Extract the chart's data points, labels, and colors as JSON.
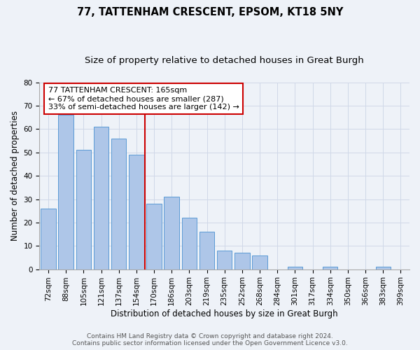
{
  "title1": "77, TATTENHAM CRESCENT, EPSOM, KT18 5NY",
  "title2": "Size of property relative to detached houses in Great Burgh",
  "xlabel": "Distribution of detached houses by size in Great Burgh",
  "ylabel": "Number of detached properties",
  "categories": [
    "72sqm",
    "88sqm",
    "105sqm",
    "121sqm",
    "137sqm",
    "154sqm",
    "170sqm",
    "186sqm",
    "203sqm",
    "219sqm",
    "235sqm",
    "252sqm",
    "268sqm",
    "284sqm",
    "301sqm",
    "317sqm",
    "334sqm",
    "350sqm",
    "366sqm",
    "383sqm",
    "399sqm"
  ],
  "values": [
    26,
    66,
    51,
    61,
    56,
    49,
    28,
    31,
    22,
    16,
    8,
    7,
    6,
    0,
    1,
    0,
    1,
    0,
    0,
    1,
    0
  ],
  "bar_color": "#aec6e8",
  "bar_edge_color": "#5b9bd5",
  "vline_x": 5.5,
  "vline_color": "#cc0000",
  "annotation_text": "77 TATTENHAM CRESCENT: 165sqm\n← 67% of detached houses are smaller (287)\n33% of semi-detached houses are larger (142) →",
  "annotation_box_color": "#ffffff",
  "annotation_box_edge_color": "#cc0000",
  "ylim": [
    0,
    80
  ],
  "yticks": [
    0,
    10,
    20,
    30,
    40,
    50,
    60,
    70,
    80
  ],
  "grid_color": "#d0d8e8",
  "background_color": "#eef2f8",
  "footer_text": "Contains HM Land Registry data © Crown copyright and database right 2024.\nContains public sector information licensed under the Open Government Licence v3.0.",
  "title1_fontsize": 10.5,
  "title2_fontsize": 9.5,
  "xlabel_fontsize": 8.5,
  "ylabel_fontsize": 8.5,
  "tick_fontsize": 7.5,
  "annotation_fontsize": 8,
  "footer_fontsize": 6.5
}
